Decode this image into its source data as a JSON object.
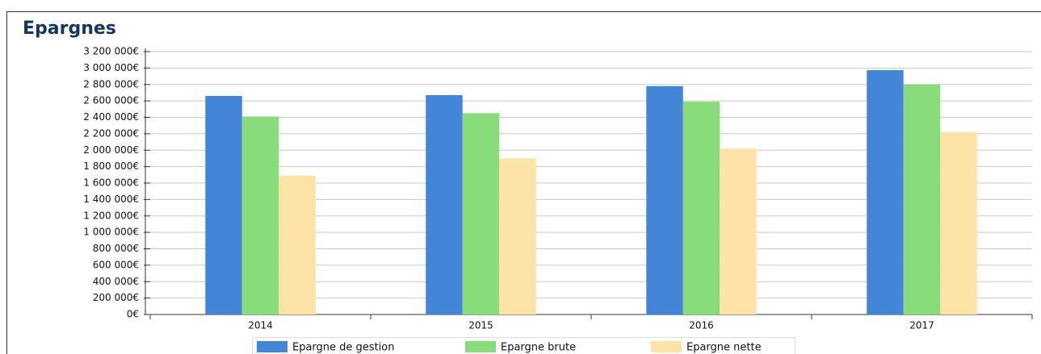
{
  "chart_data": {
    "type": "bar",
    "title": "Epargnes",
    "categories": [
      "2014",
      "2015",
      "2016",
      "2017"
    ],
    "series": [
      {
        "name": "Epargne de gestion",
        "color": "#4285d9",
        "values": [
          2660000,
          2670000,
          2780000,
          2975000
        ]
      },
      {
        "name": "Epargne brute",
        "color": "#88dd7a",
        "values": [
          2410000,
          2450000,
          2590000,
          2800000
        ]
      },
      {
        "name": "Epargne nette",
        "color": "#fde3a7",
        "values": [
          1690000,
          1900000,
          2020000,
          2220000
        ]
      }
    ],
    "ylim": [
      0,
      3200000
    ],
    "yticks": [
      {
        "value": 0,
        "label": "0€"
      },
      {
        "value": 200000,
        "label": "200 000€"
      },
      {
        "value": 400000,
        "label": "400 000€"
      },
      {
        "value": 600000,
        "label": "600 000€"
      },
      {
        "value": 800000,
        "label": "800 000€"
      },
      {
        "value": 1000000,
        "label": "1 000 000€"
      },
      {
        "value": 1200000,
        "label": "1 200 000€"
      },
      {
        "value": 1400000,
        "label": "1 400 000€"
      },
      {
        "value": 1600000,
        "label": "1 600 000€"
      },
      {
        "value": 1800000,
        "label": "1 800 000€"
      },
      {
        "value": 2000000,
        "label": "2 000 000€"
      },
      {
        "value": 2200000,
        "label": "2 200 000€"
      },
      {
        "value": 2400000,
        "label": "2 400 000€"
      },
      {
        "value": 2600000,
        "label": "2 600 000€"
      },
      {
        "value": 2800000,
        "label": "2 800 000€"
      },
      {
        "value": 3000000,
        "label": "3 000 000€"
      },
      {
        "value": 3200000,
        "label": "3 200 000€"
      }
    ],
    "grid": true
  }
}
